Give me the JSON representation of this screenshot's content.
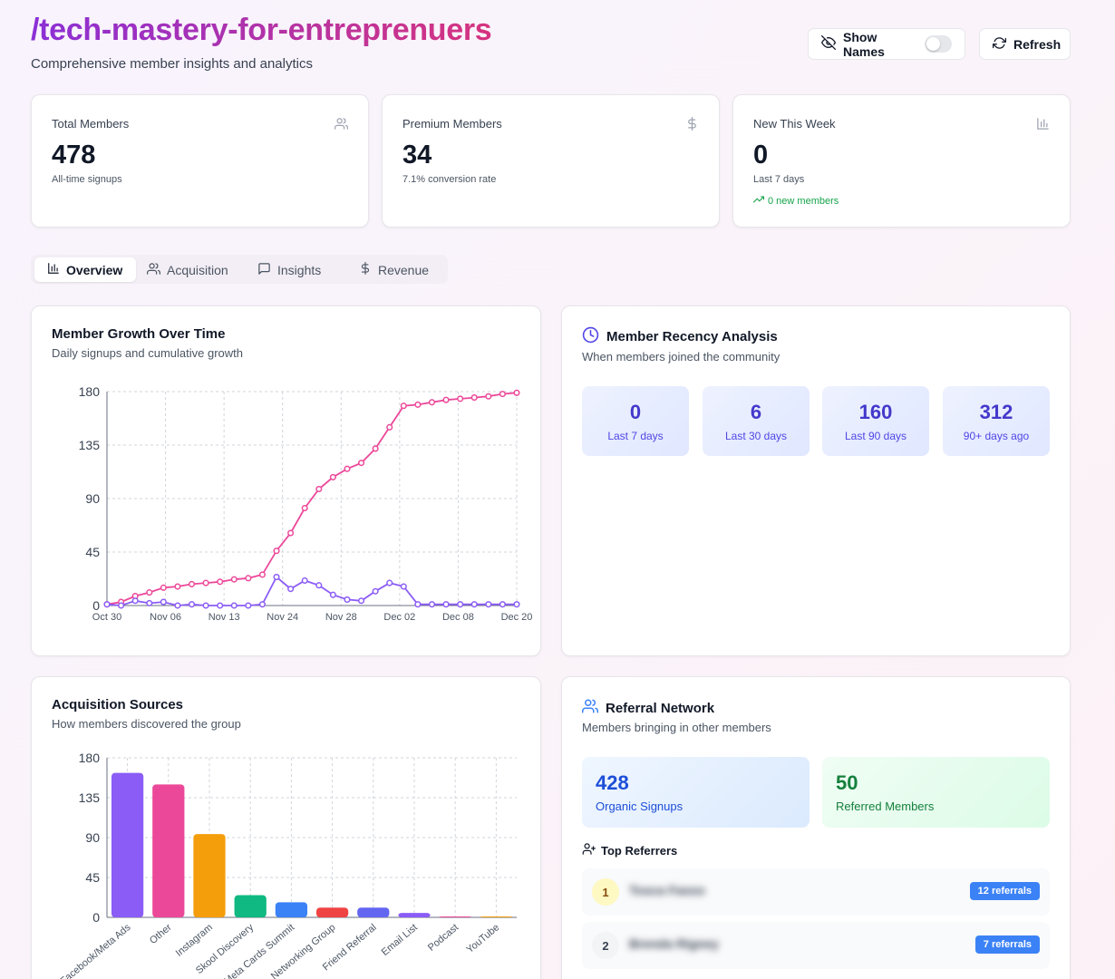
{
  "header": {
    "title": "/tech-mastery-for-entreprenuers",
    "subtitle": "Comprehensive member insights and analytics",
    "show_names_label": "Show Names",
    "refresh_label": "Refresh"
  },
  "stats": {
    "total": {
      "label": "Total Members",
      "value": "478",
      "sub": "All-time signups",
      "icon": "users-icon"
    },
    "premium": {
      "label": "Premium Members",
      "value": "34",
      "sub": "7.1% conversion rate",
      "icon": "dollar-icon"
    },
    "new_week": {
      "label": "New This Week",
      "value": "0",
      "sub": "Last 7 days",
      "trend": "0 new members",
      "icon": "bar-chart-icon"
    }
  },
  "tabs": [
    {
      "label": "Overview",
      "active": true
    },
    {
      "label": "Acquisition",
      "active": false
    },
    {
      "label": "Insights",
      "active": false
    },
    {
      "label": "Revenue",
      "active": false
    }
  ],
  "growth": {
    "title": "Member Growth Over Time",
    "subtitle": "Daily signups and cumulative growth"
  },
  "recency": {
    "title": "Member Recency Analysis",
    "subtitle": "When members joined the community",
    "boxes": [
      {
        "value": "0",
        "label": "Last 7 days"
      },
      {
        "value": "6",
        "label": "Last 30 days"
      },
      {
        "value": "160",
        "label": "Last 90 days"
      },
      {
        "value": "312",
        "label": "90+ days ago"
      }
    ]
  },
  "acquisition": {
    "title": "Acquisition Sources",
    "subtitle": "How members discovered the group"
  },
  "referral": {
    "title": "Referral Network",
    "subtitle": "Members bringing in other members",
    "organic": {
      "value": "428",
      "label": "Organic Signups"
    },
    "referred": {
      "value": "50",
      "label": "Referred Members"
    },
    "top_label": "Top Referrers",
    "referrers": [
      {
        "rank": "1",
        "name": "Tosca Fasso",
        "badge": "12 referrals"
      },
      {
        "rank": "2",
        "name": "Brenda Rigney",
        "badge": "7 referrals"
      }
    ]
  },
  "colors": {
    "cumulative": "#ec4899",
    "daily": "#8b5cf6",
    "accent": "#4338ca",
    "referral_badge": "#3b82f6"
  },
  "chart_data": [
    {
      "type": "line",
      "title": "Member Growth Over Time",
      "x_tick_labels": [
        "Oct 30",
        "Nov 06",
        "Nov 13",
        "Nov 24",
        "Nov 28",
        "Dec 02",
        "Dec 08",
        "Dec 20"
      ],
      "ylim": [
        0,
        180
      ],
      "y_ticks": [
        0,
        45,
        90,
        135,
        180
      ],
      "grid": true,
      "series": [
        {
          "name": "Cumulative",
          "color": "#ec4899",
          "values": [
            1,
            3,
            8,
            11,
            15,
            16,
            18,
            19,
            20,
            22,
            23,
            26,
            46,
            61,
            82,
            98,
            108,
            115,
            120,
            132,
            150,
            168,
            169,
            171,
            173,
            174,
            175,
            176,
            178,
            179
          ]
        },
        {
          "name": "Daily signups",
          "color": "#8b5cf6",
          "values": [
            1,
            0,
            4,
            2,
            3,
            0,
            1,
            0,
            0,
            0,
            0,
            1,
            24,
            14,
            21,
            17,
            9,
            5,
            4,
            12,
            19,
            16,
            1,
            1,
            1,
            1,
            1,
            1,
            1,
            1
          ]
        }
      ]
    },
    {
      "type": "bar",
      "title": "Acquisition Sources",
      "categories": [
        "Facebook/Meta Ads",
        "Other",
        "Instagram",
        "Skool Discovery",
        "Meta Cards Summit",
        "Networking Group",
        "Friend Referral",
        "Email List",
        "Podcast",
        "YouTube"
      ],
      "values": [
        163,
        150,
        94,
        25,
        17,
        11,
        11,
        5,
        1,
        1
      ],
      "colors": [
        "#8b5cf6",
        "#ec4899",
        "#f59e0b",
        "#10b981",
        "#3b82f6",
        "#ef4444",
        "#6366f1",
        "#8b5cf6",
        "#ec4899",
        "#f59e0b"
      ],
      "ylim": [
        0,
        180
      ],
      "y_ticks": [
        0,
        45,
        90,
        135,
        180
      ],
      "grid": true
    }
  ]
}
